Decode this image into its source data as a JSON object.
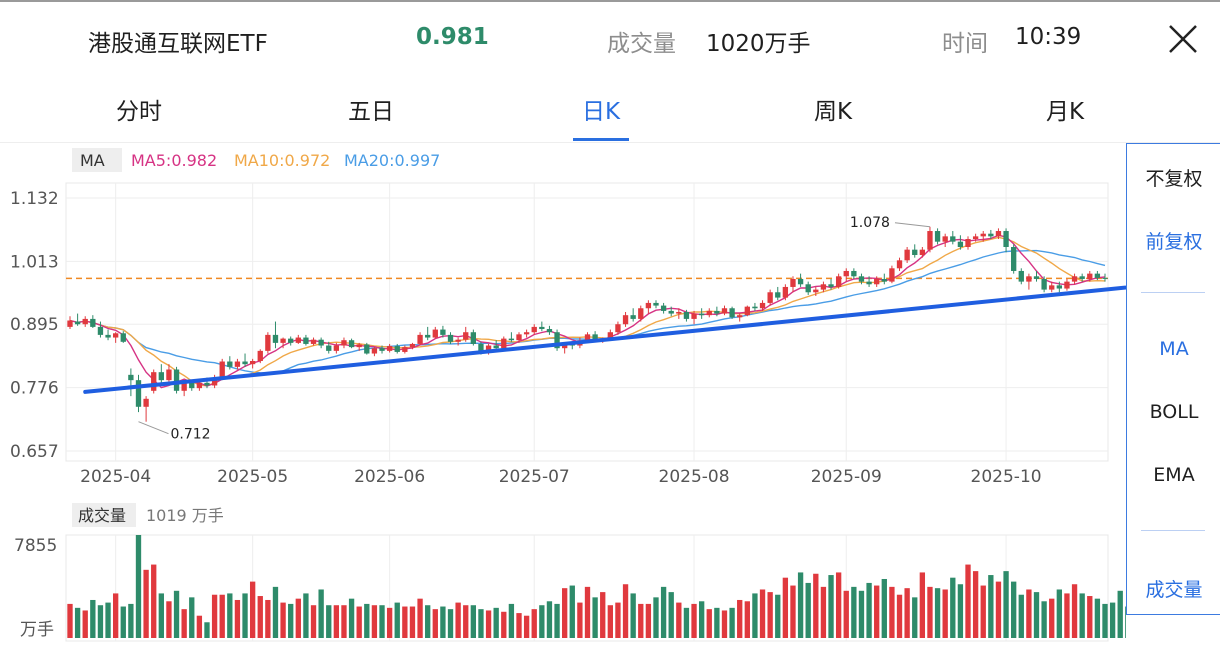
{
  "header": {
    "title": "港股通互联网ETF",
    "price": "0.981",
    "volume_label": "成交量",
    "volume_value": "1020万手",
    "time_label": "时间",
    "time_value": "10:39"
  },
  "tabs": [
    {
      "label": "分时",
      "active": false
    },
    {
      "label": "五日",
      "active": false
    },
    {
      "label": "日K",
      "active": true
    },
    {
      "label": "周K",
      "active": false
    },
    {
      "label": "月K",
      "active": false
    }
  ],
  "side_panel": {
    "items": [
      "不复权",
      "前复权",
      "MA",
      "BOLL",
      "EMA",
      "成交量"
    ],
    "selected": [
      "前复权",
      "MA",
      "成交量"
    ]
  },
  "colors": {
    "up": "#e0393e",
    "down": "#2e8b6a",
    "accent": "#2a6fe0",
    "ma5": "#d63384",
    "ma10": "#f0a848",
    "ma20": "#4a9de6",
    "trendline": "#1f5ee0",
    "price_line": "#f08a24"
  },
  "chart_data": [
    {
      "type": "candlestick",
      "indicator_tag": "MA",
      "legend": [
        {
          "name": "MA5",
          "value": "0.982"
        },
        {
          "name": "MA10",
          "value": "0.972"
        },
        {
          "name": "MA20",
          "value": "0.997"
        }
      ],
      "y_ticks": [
        "1.132",
        "1.013",
        "0.895",
        "0.776",
        "0.657"
      ],
      "ylim": [
        0.657,
        1.132
      ],
      "x_ticks": [
        "2025-04",
        "2025-05",
        "2025-06",
        "2025-07",
        "2025-08",
        "2025-09",
        "2025-10"
      ],
      "x_tick_index": [
        6,
        24,
        42,
        61,
        82,
        102,
        123
      ],
      "annotations": [
        {
          "text": "1.078",
          "index": 113,
          "value": 1.078
        },
        {
          "text": "0.712",
          "index": 9,
          "value": 0.712
        }
      ],
      "current_price": 0.981,
      "trendline": [
        {
          "index": 2,
          "value": 0.768
        },
        {
          "index": 150,
          "value": 0.98
        }
      ],
      "ohlc": [
        [
          0.89,
          0.91,
          0.886,
          0.902
        ],
        [
          0.9,
          0.915,
          0.892,
          0.895
        ],
        [
          0.895,
          0.91,
          0.89,
          0.905
        ],
        [
          0.905,
          0.912,
          0.888,
          0.89
        ],
        [
          0.89,
          0.9,
          0.87,
          0.875
        ],
        [
          0.875,
          0.885,
          0.865,
          0.87
        ],
        [
          0.87,
          0.88,
          0.86,
          0.878
        ],
        [
          0.878,
          0.882,
          0.86,
          0.862
        ],
        [
          0.8,
          0.812,
          0.76,
          0.79
        ],
        [
          0.79,
          0.8,
          0.73,
          0.74
        ],
        [
          0.74,
          0.76,
          0.712,
          0.755
        ],
        [
          0.77,
          0.81,
          0.765,
          0.805
        ],
        [
          0.805,
          0.82,
          0.78,
          0.79
        ],
        [
          0.79,
          0.82,
          0.785,
          0.81
        ],
        [
          0.81,
          0.815,
          0.765,
          0.77
        ],
        [
          0.77,
          0.79,
          0.76,
          0.785
        ],
        [
          0.785,
          0.79,
          0.77,
          0.775
        ],
        [
          0.775,
          0.79,
          0.77,
          0.785
        ],
        [
          0.785,
          0.795,
          0.775,
          0.78
        ],
        [
          0.78,
          0.8,
          0.775,
          0.795
        ],
        [
          0.795,
          0.83,
          0.79,
          0.825
        ],
        [
          0.825,
          0.835,
          0.81,
          0.815
        ],
        [
          0.815,
          0.83,
          0.81,
          0.825
        ],
        [
          0.825,
          0.84,
          0.815,
          0.82
        ],
        [
          0.82,
          0.83,
          0.812,
          0.826
        ],
        [
          0.826,
          0.848,
          0.822,
          0.845
        ],
        [
          0.845,
          0.88,
          0.84,
          0.875
        ],
        [
          0.875,
          0.9,
          0.85,
          0.86
        ],
        [
          0.86,
          0.87,
          0.85,
          0.868
        ],
        [
          0.868,
          0.872,
          0.855,
          0.86
        ],
        [
          0.86,
          0.875,
          0.858,
          0.87
        ],
        [
          0.87,
          0.875,
          0.855,
          0.858
        ],
        [
          0.858,
          0.87,
          0.855,
          0.866
        ],
        [
          0.866,
          0.87,
          0.85,
          0.855
        ],
        [
          0.855,
          0.862,
          0.84,
          0.845
        ],
        [
          0.845,
          0.86,
          0.84,
          0.855
        ],
        [
          0.855,
          0.87,
          0.85,
          0.865
        ],
        [
          0.865,
          0.868,
          0.85,
          0.852
        ],
        [
          0.852,
          0.86,
          0.845,
          0.857
        ],
        [
          0.857,
          0.86,
          0.838,
          0.84
        ],
        [
          0.84,
          0.852,
          0.835,
          0.85
        ],
        [
          0.85,
          0.855,
          0.84,
          0.845
        ],
        [
          0.845,
          0.858,
          0.842,
          0.854
        ],
        [
          0.854,
          0.858,
          0.84,
          0.843
        ],
        [
          0.843,
          0.855,
          0.84,
          0.852
        ],
        [
          0.852,
          0.86,
          0.848,
          0.858
        ],
        [
          0.858,
          0.88,
          0.855,
          0.875
        ],
        [
          0.875,
          0.89,
          0.865,
          0.87
        ],
        [
          0.87,
          0.89,
          0.868,
          0.885
        ],
        [
          0.885,
          0.892,
          0.87,
          0.875
        ],
        [
          0.875,
          0.88,
          0.858,
          0.862
        ],
        [
          0.862,
          0.87,
          0.855,
          0.866
        ],
        [
          0.866,
          0.89,
          0.862,
          0.88
        ],
        [
          0.88,
          0.885,
          0.855,
          0.858
        ],
        [
          0.858,
          0.862,
          0.838,
          0.842
        ],
        [
          0.842,
          0.858,
          0.838,
          0.855
        ],
        [
          0.855,
          0.865,
          0.848,
          0.85
        ],
        [
          0.85,
          0.872,
          0.846,
          0.868
        ],
        [
          0.868,
          0.88,
          0.862,
          0.865
        ],
        [
          0.865,
          0.88,
          0.86,
          0.876
        ],
        [
          0.876,
          0.885,
          0.87,
          0.88
        ],
        [
          0.88,
          0.895,
          0.875,
          0.89
        ],
        [
          0.89,
          0.9,
          0.882,
          0.886
        ],
        [
          0.886,
          0.892,
          0.875,
          0.88
        ],
        [
          0.88,
          0.885,
          0.845,
          0.85
        ],
        [
          0.85,
          0.86,
          0.84,
          0.857
        ],
        [
          0.857,
          0.862,
          0.848,
          0.855
        ],
        [
          0.855,
          0.87,
          0.85,
          0.865
        ],
        [
          0.865,
          0.88,
          0.86,
          0.876
        ],
        [
          0.876,
          0.882,
          0.862,
          0.866
        ],
        [
          0.866,
          0.87,
          0.86,
          0.868
        ],
        [
          0.868,
          0.885,
          0.865,
          0.88
        ],
        [
          0.88,
          0.9,
          0.875,
          0.895
        ],
        [
          0.895,
          0.918,
          0.89,
          0.912
        ],
        [
          0.912,
          0.925,
          0.9,
          0.905
        ],
        [
          0.905,
          0.93,
          0.9,
          0.925
        ],
        [
          0.925,
          0.94,
          0.915,
          0.935
        ],
        [
          0.935,
          0.94,
          0.925,
          0.93
        ],
        [
          0.93,
          0.935,
          0.915,
          0.92
        ],
        [
          0.92,
          0.928,
          0.91,
          0.915
        ],
        [
          0.915,
          0.925,
          0.905,
          0.918
        ],
        [
          0.918,
          0.922,
          0.9,
          0.905
        ],
        [
          0.905,
          0.92,
          0.895,
          0.915
        ],
        [
          0.915,
          0.925,
          0.905,
          0.912
        ],
        [
          0.912,
          0.925,
          0.908,
          0.92
        ],
        [
          0.92,
          0.928,
          0.91,
          0.915
        ],
        [
          0.915,
          0.93,
          0.912,
          0.925
        ],
        [
          0.925,
          0.928,
          0.905,
          0.908
        ],
        [
          0.908,
          0.915,
          0.9,
          0.912
        ],
        [
          0.912,
          0.93,
          0.91,
          0.928
        ],
        [
          0.928,
          0.935,
          0.92,
          0.925
        ],
        [
          0.925,
          0.94,
          0.92,
          0.935
        ],
        [
          0.935,
          0.96,
          0.93,
          0.955
        ],
        [
          0.955,
          0.965,
          0.94,
          0.945
        ],
        [
          0.945,
          0.97,
          0.94,
          0.965
        ],
        [
          0.965,
          0.985,
          0.955,
          0.98
        ],
        [
          0.98,
          0.99,
          0.965,
          0.97
        ],
        [
          0.97,
          0.975,
          0.95,
          0.955
        ],
        [
          0.955,
          0.965,
          0.948,
          0.96
        ],
        [
          0.96,
          0.975,
          0.955,
          0.97
        ],
        [
          0.97,
          0.98,
          0.96,
          0.965
        ],
        [
          0.965,
          0.99,
          0.962,
          0.985
        ],
        [
          0.985,
          1.0,
          0.975,
          0.995
        ],
        [
          0.995,
          1.0,
          0.98,
          0.985
        ],
        [
          0.985,
          0.99,
          0.97,
          0.975
        ],
        [
          0.975,
          0.985,
          0.965,
          0.97
        ],
        [
          0.97,
          0.985,
          0.965,
          0.98
        ],
        [
          0.98,
          0.99,
          0.97,
          0.975
        ],
        [
          0.975,
          1.005,
          0.972,
          1.0
        ],
        [
          1.0,
          1.02,
          0.995,
          1.015
        ],
        [
          1.015,
          1.04,
          1.01,
          1.035
        ],
        [
          1.035,
          1.045,
          1.02,
          1.025
        ],
        [
          1.025,
          1.04,
          1.02,
          1.035
        ],
        [
          1.035,
          1.078,
          1.03,
          1.07
        ],
        [
          1.07,
          1.075,
          1.045,
          1.05
        ],
        [
          1.05,
          1.065,
          1.04,
          1.06
        ],
        [
          1.06,
          1.07,
          1.045,
          1.05
        ],
        [
          1.05,
          1.062,
          1.035,
          1.04
        ],
        [
          1.04,
          1.06,
          1.035,
          1.055
        ],
        [
          1.055,
          1.065,
          1.05,
          1.06
        ],
        [
          1.06,
          1.07,
          1.05,
          1.065
        ],
        [
          1.065,
          1.072,
          1.055,
          1.06
        ],
        [
          1.06,
          1.075,
          1.055,
          1.07
        ],
        [
          1.07,
          1.075,
          1.03,
          1.04
        ],
        [
          1.04,
          1.045,
          0.99,
          0.995
        ],
        [
          0.995,
          1.0,
          0.97,
          0.975
        ],
        [
          0.975,
          0.99,
          0.96,
          0.985
        ],
        [
          0.985,
          0.995,
          0.975,
          0.98
        ],
        [
          0.98,
          0.985,
          0.955,
          0.96
        ],
        [
          0.96,
          0.975,
          0.955,
          0.968
        ],
        [
          0.968,
          0.975,
          0.955,
          0.962
        ],
        [
          0.962,
          0.98,
          0.958,
          0.975
        ],
        [
          0.975,
          0.99,
          0.97,
          0.985
        ],
        [
          0.985,
          0.99,
          0.975,
          0.98
        ],
        [
          0.98,
          0.995,
          0.975,
          0.99
        ],
        [
          0.99,
          0.995,
          0.978,
          0.982
        ],
        [
          0.982,
          0.99,
          0.975,
          0.981
        ]
      ]
    },
    {
      "type": "bar",
      "title": "成交量",
      "value_label": "1019 万手",
      "y_ticks": [
        "7855",
        "万手"
      ],
      "ylim": [
        0,
        7855
      ],
      "values": [
        2600,
        2300,
        2100,
        2900,
        2500,
        2700,
        3400,
        2400,
        2600,
        7855,
        5200,
        5600,
        3400,
        2800,
        3600,
        2200,
        3100,
        1700,
        1200,
        3300,
        3300,
        3400,
        2900,
        3400,
        4300,
        3200,
        2900,
        3900,
        2700,
        2600,
        3000,
        3400,
        2500,
        3700,
        2500,
        2500,
        2500,
        3000,
        2400,
        2600,
        2500,
        2500,
        2300,
        2700,
        2400,
        2400,
        3000,
        2500,
        2200,
        2400,
        2200,
        2700,
        2500,
        2500,
        2200,
        2100,
        2300,
        2000,
        2600,
        1900,
        1700,
        2200,
        2500,
        2800,
        2600,
        3800,
        4000,
        2700,
        3900,
        3100,
        3500,
        2500,
        2700,
        4100,
        3400,
        2600,
        2600,
        3100,
        3900,
        3500,
        2700,
        2300,
        2600,
        2800,
        2200,
        2300,
        2100,
        2300,
        2900,
        2800,
        3400,
        3700,
        3500,
        3300,
        4600,
        4000,
        5000,
        4200,
        4900,
        3900,
        4800,
        5000,
        3600,
        3900,
        3600,
        4200,
        4000,
        4500,
        3900,
        3300,
        3800,
        3100,
        5000,
        3900,
        3800,
        3700,
        4600,
        4100,
        5600,
        5100,
        4000,
        4800,
        4300,
        5100,
        4300,
        3300,
        3700,
        3500,
        2800,
        3000,
        3700,
        3400,
        4100,
        3400,
        3200,
        3000,
        2600,
        2700,
        3600,
        2400,
        1500,
        1400
      ]
    }
  ]
}
